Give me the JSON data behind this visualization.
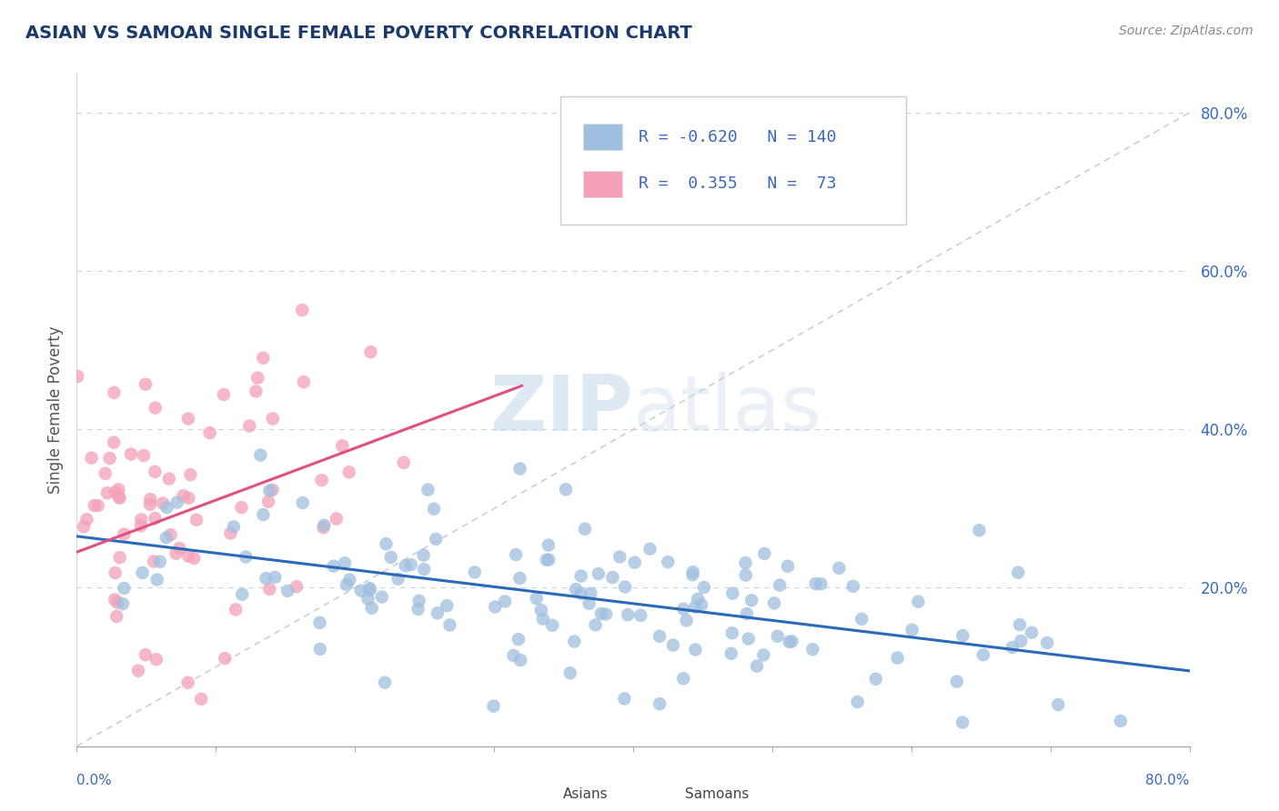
{
  "title": "ASIAN VS SAMOAN SINGLE FEMALE POVERTY CORRELATION CHART",
  "source": "Source: ZipAtlas.com",
  "ylabel": "Single Female Poverty",
  "xlim": [
    0.0,
    0.8
  ],
  "ylim": [
    0.0,
    0.85
  ],
  "yticks": [
    0.2,
    0.4,
    0.6,
    0.8
  ],
  "ytick_labels": [
    "20.0%",
    "40.0%",
    "60.0%",
    "80.0%"
  ],
  "legend_items": [
    {
      "color": "#aec6e8",
      "R": "-0.620",
      "N": "140"
    },
    {
      "color": "#f4a7b9",
      "R": " 0.355",
      "N": " 73"
    }
  ],
  "watermark_zip": "ZIP",
  "watermark_atlas": "atlas",
  "background_color": "#ffffff",
  "grid_color": "#c8d4e8",
  "title_color": "#1a3a6b",
  "title_fontsize": 14,
  "source_fontsize": 10,
  "source_color": "#888888",
  "axis_label_color": "#3a6abf",
  "blue_R": -0.62,
  "blue_N": 140,
  "pink_R": 0.355,
  "pink_N": 73,
  "blue_scatter_color": "#9ebfe0",
  "pink_scatter_color": "#f4a0b8",
  "blue_line_color": "#2a6ab8",
  "pink_line_color": "#e05080",
  "ref_line_color": "#c0c8d0",
  "blue_trend_x0": 0.0,
  "blue_trend_x1": 0.8,
  "blue_trend_y0": 0.265,
  "blue_trend_y1": 0.095,
  "pink_trend_x0": 0.0,
  "pink_trend_x1": 0.32,
  "pink_trend_y0": 0.245,
  "pink_trend_y1": 0.455
}
